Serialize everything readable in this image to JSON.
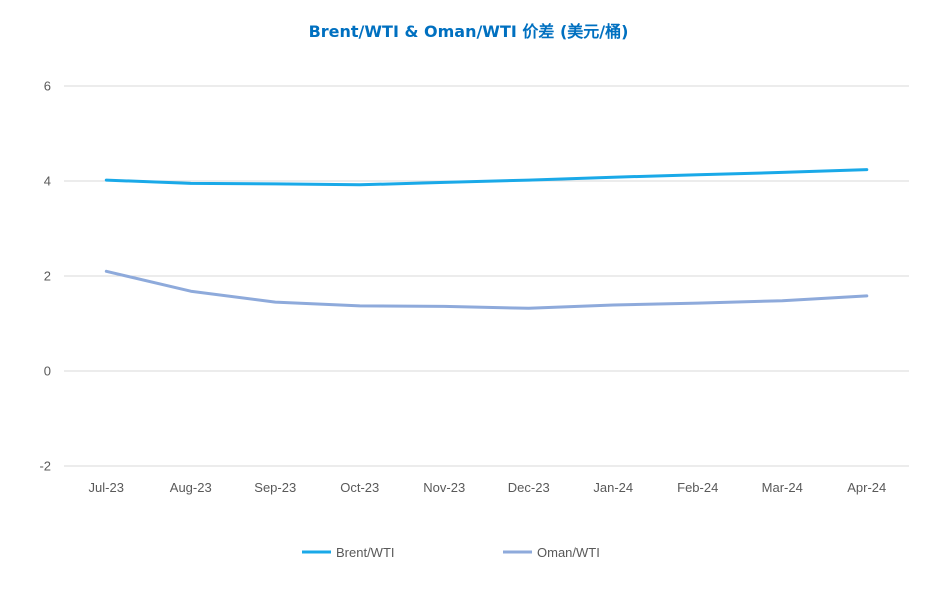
{
  "chart_data": {
    "type": "line",
    "title": "Brent/WTI & Oman/WTI 价差 (美元/桶)",
    "xlabel": "",
    "ylabel": "",
    "categories": [
      "Jul-23",
      "Aug-23",
      "Sep-23",
      "Oct-23",
      "Nov-23",
      "Dec-23",
      "Jan-24",
      "Feb-24",
      "Mar-24",
      "Apr-24"
    ],
    "ylim": [
      -2,
      6
    ],
    "yticks": [
      "-2",
      "0",
      "2",
      "4",
      "6"
    ],
    "grid": true,
    "legend_position": "bottom",
    "series": [
      {
        "name": "Brent/WTI",
        "color": "#1aa9e8",
        "values": [
          4.02,
          3.95,
          3.94,
          3.92,
          3.97,
          4.02,
          4.08,
          4.13,
          4.18,
          4.24
        ]
      },
      {
        "name": "Oman/WTI",
        "color": "#8eaadb",
        "values": [
          2.1,
          1.68,
          1.45,
          1.37,
          1.36,
          1.32,
          1.39,
          1.43,
          1.48,
          1.58
        ]
      }
    ]
  }
}
